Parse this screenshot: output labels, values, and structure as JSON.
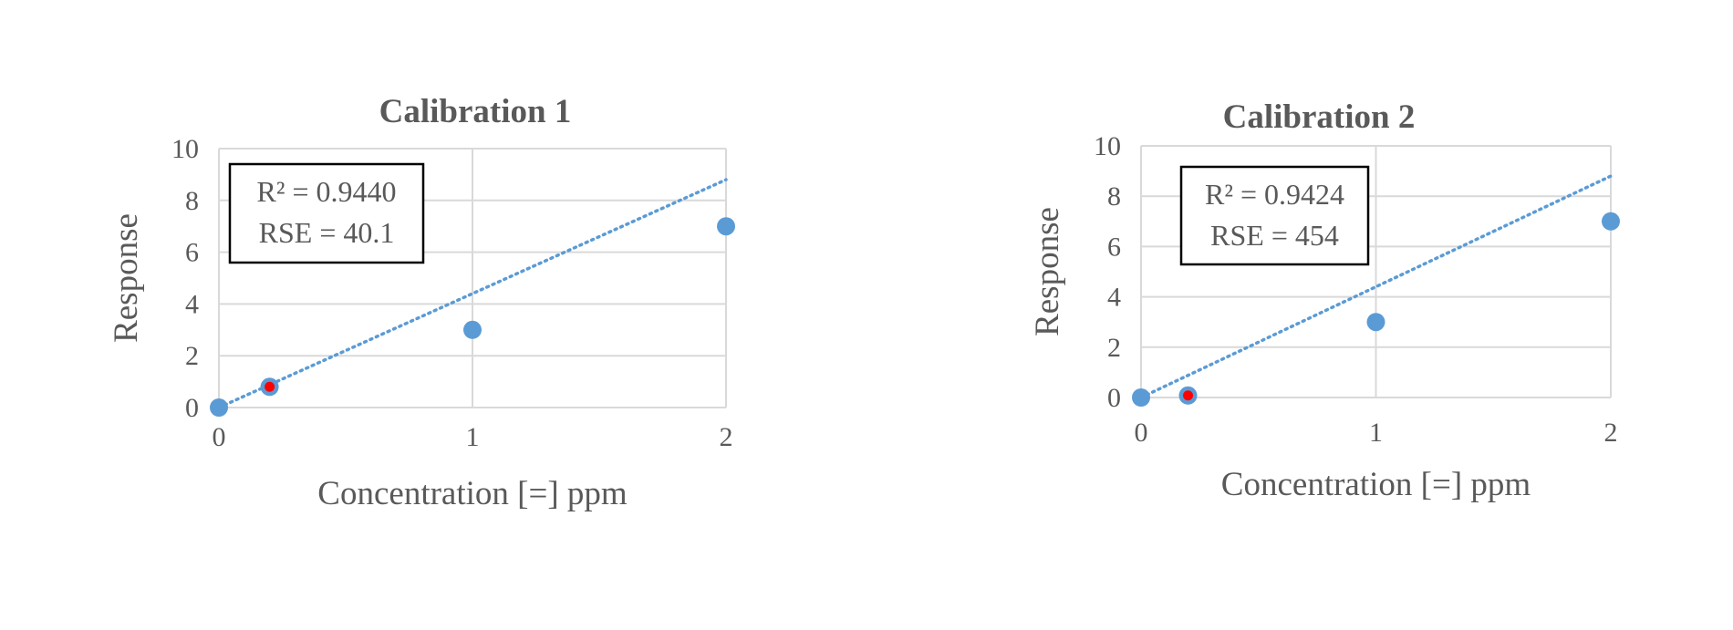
{
  "chart_data": [
    {
      "type": "scatter",
      "title": "Calibration 1",
      "xlabel": "Concentration [=] ppm",
      "ylabel": "Response",
      "xlim": [
        0,
        2
      ],
      "ylim": [
        0,
        10
      ],
      "x_ticks": [
        "0",
        "1",
        "2"
      ],
      "y_ticks": [
        "0",
        "2",
        "4",
        "6",
        "8",
        "10"
      ],
      "grid": true,
      "points": [
        {
          "x": 0,
          "y": 0
        },
        {
          "x": 0.2,
          "y": 0.8
        },
        {
          "x": 1,
          "y": 3
        },
        {
          "x": 2,
          "y": 7
        }
      ],
      "highlighted_point": {
        "x": 0.2,
        "y": 0.8
      },
      "trendline": {
        "style": "dotted linear",
        "x0": 0,
        "y0": 0,
        "x1": 2,
        "y1": 8.8
      },
      "annotations": [
        "R² = 0.9440",
        "RSE = 40.1"
      ],
      "colors": {
        "marker": "#5b9bd5",
        "highlight": "#ff0000",
        "trendline": "#5b9bd5"
      }
    },
    {
      "type": "scatter",
      "title": "Calibration 2",
      "xlabel": "Concentration [=] ppm",
      "ylabel": "Response",
      "xlim": [
        0,
        2
      ],
      "ylim": [
        0,
        10
      ],
      "x_ticks": [
        "0",
        "1",
        "2"
      ],
      "y_ticks": [
        "0",
        "2",
        "4",
        "6",
        "8",
        "10"
      ],
      "grid": true,
      "points": [
        {
          "x": 0,
          "y": 0
        },
        {
          "x": 0.2,
          "y": 0.08
        },
        {
          "x": 1,
          "y": 3
        },
        {
          "x": 2,
          "y": 7
        }
      ],
      "highlighted_point": {
        "x": 0.2,
        "y": 0.08
      },
      "trendline": {
        "style": "dotted linear",
        "x0": 0,
        "y0": 0,
        "x1": 2,
        "y1": 8.8
      },
      "annotations": [
        "R² = 0.9424",
        "RSE = 454"
      ],
      "colors": {
        "marker": "#5b9bd5",
        "highlight": "#ff0000",
        "trendline": "#5b9bd5"
      }
    }
  ]
}
